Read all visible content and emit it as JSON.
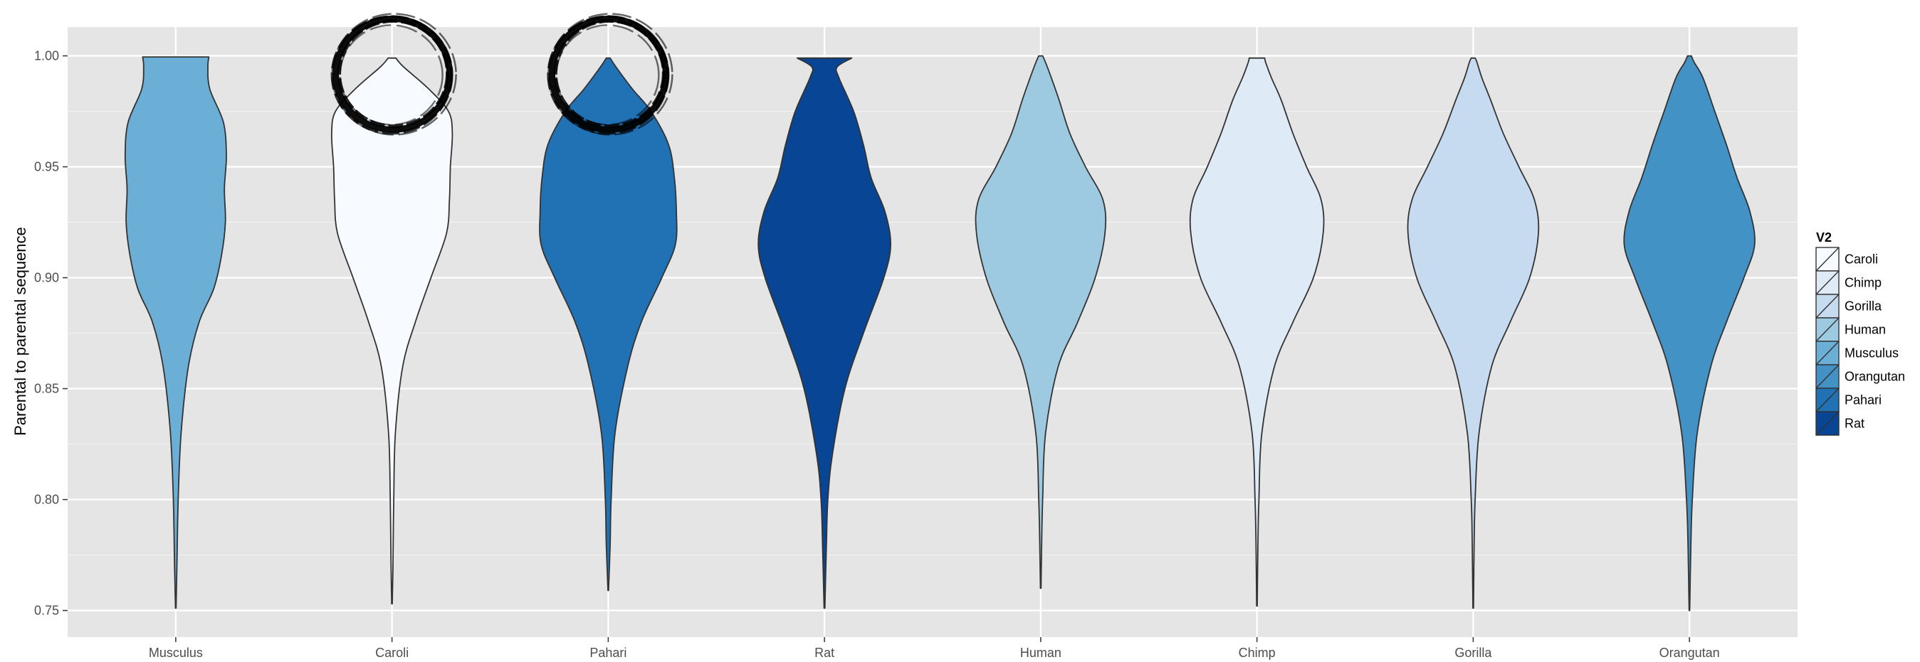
{
  "chart_data": {
    "type": "violin",
    "title": "",
    "xlabel": "",
    "ylabel": "Parental to parental sequence",
    "ylim": [
      0.738,
      1.013
    ],
    "yticks": [
      0.75,
      0.8,
      0.85,
      0.9,
      0.95,
      1.0
    ],
    "ytick_labels": [
      "0.75",
      "0.80",
      "0.85",
      "0.90",
      "0.95",
      "1.00"
    ],
    "grid": true,
    "legend": {
      "title": "V2",
      "position": "right"
    },
    "legend_order": [
      "Caroli",
      "Chimp",
      "Gorilla",
      "Human",
      "Musculus",
      "Orangutan",
      "Pahari",
      "Rat"
    ],
    "colors": {
      "Caroli": "#f7fbff",
      "Chimp": "#deebf7",
      "Gorilla": "#c6dbef",
      "Human": "#9ecae1",
      "Musculus": "#6baed6",
      "Orangutan": "#4292c6",
      "Pahari": "#2171b5",
      "Rat": "#084594"
    },
    "panel_background": "#e5e5e5",
    "categories": [
      "Musculus",
      "Caroli",
      "Pahari",
      "Rat",
      "Human",
      "Chimp",
      "Gorilla",
      "Orangutan"
    ],
    "series": [
      {
        "name": "Musculus",
        "profile": [
          [
            0.751,
            0.003
          ],
          [
            0.77,
            0.012
          ],
          [
            0.8,
            0.025
          ],
          [
            0.83,
            0.055
          ],
          [
            0.86,
            0.13
          ],
          [
            0.88,
            0.24
          ],
          [
            0.895,
            0.39
          ],
          [
            0.91,
            0.47
          ],
          [
            0.925,
            0.51
          ],
          [
            0.94,
            0.5
          ],
          [
            0.955,
            0.52
          ],
          [
            0.97,
            0.49
          ],
          [
            0.985,
            0.35
          ],
          [
            0.995,
            0.33
          ],
          [
            0.9995,
            0.34
          ]
        ]
      },
      {
        "name": "Caroli",
        "profile": [
          [
            0.753,
            0.003
          ],
          [
            0.77,
            0.01
          ],
          [
            0.8,
            0.018
          ],
          [
            0.83,
            0.035
          ],
          [
            0.86,
            0.11
          ],
          [
            0.88,
            0.24
          ],
          [
            0.9,
            0.4
          ],
          [
            0.92,
            0.56
          ],
          [
            0.935,
            0.59
          ],
          [
            0.95,
            0.6
          ],
          [
            0.965,
            0.62
          ],
          [
            0.975,
            0.58
          ],
          [
            0.985,
            0.38
          ],
          [
            0.995,
            0.12
          ],
          [
            0.999,
            0.04
          ]
        ]
      },
      {
        "name": "Pahari",
        "profile": [
          [
            0.759,
            0.003
          ],
          [
            0.78,
            0.02
          ],
          [
            0.8,
            0.03
          ],
          [
            0.83,
            0.07
          ],
          [
            0.86,
            0.2
          ],
          [
            0.88,
            0.34
          ],
          [
            0.9,
            0.55
          ],
          [
            0.915,
            0.69
          ],
          [
            0.93,
            0.7
          ],
          [
            0.945,
            0.68
          ],
          [
            0.96,
            0.62
          ],
          [
            0.975,
            0.44
          ],
          [
            0.985,
            0.25
          ],
          [
            0.995,
            0.08
          ],
          [
            0.999,
            0.02
          ]
        ]
      },
      {
        "name": "Rat",
        "profile": [
          [
            0.751,
            0.004
          ],
          [
            0.78,
            0.02
          ],
          [
            0.8,
            0.035
          ],
          [
            0.82,
            0.08
          ],
          [
            0.85,
            0.21
          ],
          [
            0.875,
            0.4
          ],
          [
            0.9,
            0.61
          ],
          [
            0.915,
            0.68
          ],
          [
            0.93,
            0.62
          ],
          [
            0.945,
            0.48
          ],
          [
            0.96,
            0.4
          ],
          [
            0.975,
            0.3
          ],
          [
            0.99,
            0.15
          ],
          [
            0.995,
            0.13
          ],
          [
            0.999,
            0.28
          ]
        ]
      },
      {
        "name": "Human",
        "profile": [
          [
            0.76,
            0.003
          ],
          [
            0.78,
            0.01
          ],
          [
            0.8,
            0.02
          ],
          [
            0.83,
            0.05
          ],
          [
            0.86,
            0.18
          ],
          [
            0.88,
            0.38
          ],
          [
            0.9,
            0.56
          ],
          [
            0.92,
            0.66
          ],
          [
            0.935,
            0.64
          ],
          [
            0.95,
            0.46
          ],
          [
            0.965,
            0.3
          ],
          [
            0.98,
            0.19
          ],
          [
            0.99,
            0.11
          ],
          [
            0.997,
            0.05
          ],
          [
            1.0,
            0.02
          ]
        ]
      },
      {
        "name": "Chimp",
        "profile": [
          [
            0.752,
            0.003
          ],
          [
            0.78,
            0.01
          ],
          [
            0.8,
            0.02
          ],
          [
            0.83,
            0.05
          ],
          [
            0.86,
            0.18
          ],
          [
            0.88,
            0.37
          ],
          [
            0.9,
            0.58
          ],
          [
            0.92,
            0.68
          ],
          [
            0.935,
            0.66
          ],
          [
            0.95,
            0.51
          ],
          [
            0.965,
            0.37
          ],
          [
            0.98,
            0.25
          ],
          [
            0.99,
            0.15
          ],
          [
            0.997,
            0.09
          ],
          [
            0.999,
            0.08
          ]
        ]
      },
      {
        "name": "Gorilla",
        "profile": [
          [
            0.751,
            0.003
          ],
          [
            0.78,
            0.01
          ],
          [
            0.8,
            0.02
          ],
          [
            0.83,
            0.06
          ],
          [
            0.86,
            0.19
          ],
          [
            0.88,
            0.38
          ],
          [
            0.9,
            0.58
          ],
          [
            0.92,
            0.67
          ],
          [
            0.935,
            0.63
          ],
          [
            0.95,
            0.47
          ],
          [
            0.965,
            0.31
          ],
          [
            0.98,
            0.18
          ],
          [
            0.99,
            0.09
          ],
          [
            0.997,
            0.04
          ],
          [
            0.999,
            0.02
          ]
        ]
      },
      {
        "name": "Orangutan",
        "profile": [
          [
            0.75,
            0.003
          ],
          [
            0.78,
            0.015
          ],
          [
            0.8,
            0.03
          ],
          [
            0.83,
            0.08
          ],
          [
            0.86,
            0.22
          ],
          [
            0.88,
            0.38
          ],
          [
            0.9,
            0.56
          ],
          [
            0.915,
            0.67
          ],
          [
            0.93,
            0.62
          ],
          [
            0.945,
            0.49
          ],
          [
            0.96,
            0.38
          ],
          [
            0.975,
            0.26
          ],
          [
            0.99,
            0.14
          ],
          [
            0.997,
            0.05
          ],
          [
            1.0,
            0.02
          ]
        ]
      }
    ],
    "annotations": [
      {
        "shape": "hand-drawn-circle",
        "category": "Caroli",
        "around_y": 0.993
      },
      {
        "shape": "hand-drawn-circle",
        "category": "Pahari",
        "around_y": 0.993
      }
    ]
  }
}
